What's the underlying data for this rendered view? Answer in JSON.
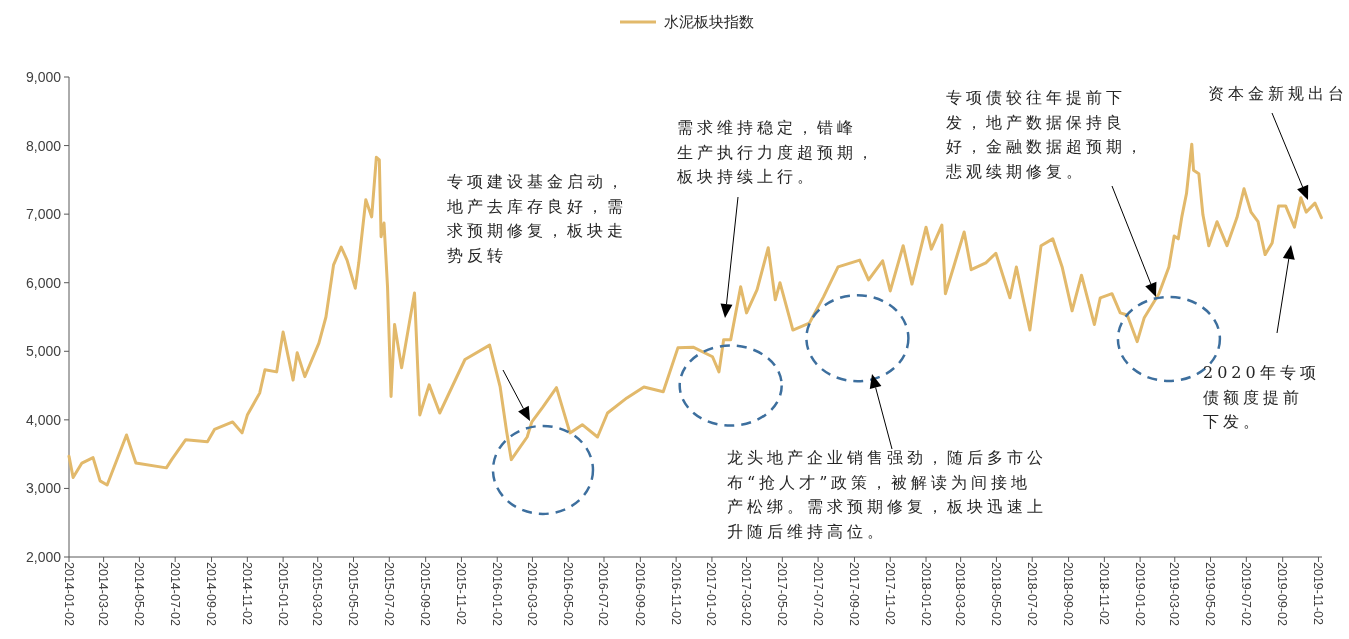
{
  "chart_data": {
    "type": "line",
    "legend": "top",
    "series": [
      {
        "name": "水泥板块指数",
        "color": "#e2b96b",
        "x": [
          "2014-01-02",
          "2014-01-09",
          "2014-01-24",
          "2014-02-12",
          "2014-02-24",
          "2014-03-08",
          "2014-04-10",
          "2014-04-26",
          "2014-06-17",
          "2014-06-26",
          "2014-07-20",
          "2014-08-26",
          "2014-09-07",
          "2014-10-08",
          "2014-10-24",
          "2014-11-02",
          "2014-11-23",
          "2014-12-02",
          "2014-12-22",
          "2015-01-02",
          "2015-01-19",
          "2015-01-26",
          "2015-02-08",
          "2015-03-04",
          "2015-03-16",
          "2015-03-29",
          "2015-04-11",
          "2015-04-21",
          "2015-05-05",
          "2015-05-11",
          "2015-05-23",
          "2015-06-02",
          "2015-06-10",
          "2015-06-15",
          "2015-06-18",
          "2015-06-23",
          "2015-06-29",
          "2015-07-05",
          "2015-07-11",
          "2015-07-23",
          "2015-08-14",
          "2015-08-23",
          "2015-09-08",
          "2015-09-26",
          "2015-11-08",
          "2015-12-20",
          "2016-01-07",
          "2016-01-18",
          "2016-01-26",
          "2016-02-22",
          "2016-03-01",
          "2016-03-20",
          "2016-04-12",
          "2016-05-05",
          "2016-05-26",
          "2016-06-21",
          "2016-07-08",
          "2016-08-10",
          "2016-09-08",
          "2016-10-11",
          "2016-11-05",
          "2016-12-01",
          "2017-01-03",
          "2017-01-14",
          "2017-01-22",
          "2017-02-03",
          "2017-02-20",
          "2017-03-02",
          "2017-03-20",
          "2017-04-08",
          "2017-04-20",
          "2017-04-28",
          "2017-05-20",
          "2017-06-17",
          "2017-07-11",
          "2017-08-05",
          "2017-09-11",
          "2017-09-26",
          "2017-10-20",
          "2017-11-02",
          "2017-11-24",
          "2017-12-09",
          "2018-01-02",
          "2018-01-11",
          "2018-01-29",
          "2018-02-04",
          "2018-02-18",
          "2018-03-08",
          "2018-03-20",
          "2018-04-14",
          "2018-05-01",
          "2018-05-25",
          "2018-06-05",
          "2018-06-17",
          "2018-06-28",
          "2018-07-17",
          "2018-08-06",
          "2018-08-22",
          "2018-09-08",
          "2018-09-24",
          "2018-10-16",
          "2018-10-26",
          "2018-11-15",
          "2018-11-29",
          "2018-12-11",
          "2018-12-28",
          "2019-01-09",
          "2019-02-03",
          "2019-02-20",
          "2019-03-01",
          "2019-03-08",
          "2019-03-14",
          "2019-03-22",
          "2019-03-31",
          "2019-04-03",
          "2019-04-12",
          "2019-04-19",
          "2019-04-29",
          "2019-05-13",
          "2019-05-30",
          "2019-06-16",
          "2019-06-28",
          "2019-07-10",
          "2019-07-22",
          "2019-08-03",
          "2019-08-15",
          "2019-08-26",
          "2019-09-07",
          "2019-09-22",
          "2019-10-03",
          "2019-10-12",
          "2019-10-27",
          "2019-11-07"
        ],
        "values": [
          3470,
          3160,
          3370,
          3450,
          3110,
          3050,
          3780,
          3370,
          3300,
          3420,
          3710,
          3680,
          3860,
          3970,
          3810,
          4070,
          4390,
          4730,
          4700,
          5280,
          4580,
          4980,
          4630,
          5120,
          5500,
          6260,
          6520,
          6330,
          5920,
          6290,
          7210,
          6960,
          7830,
          7790,
          6670,
          6870,
          5940,
          4340,
          5390,
          4760,
          5850,
          4070,
          4510,
          4100,
          4880,
          5090,
          4480,
          3830,
          3420,
          3750,
          3970,
          4190,
          4470,
          3810,
          3930,
          3750,
          4100,
          4320,
          4480,
          4410,
          5050,
          5060,
          4920,
          4700,
          5170,
          5170,
          5940,
          5560,
          5900,
          6510,
          5750,
          6000,
          5310,
          5410,
          5790,
          6230,
          6330,
          6040,
          6320,
          5880,
          6540,
          5980,
          6810,
          6490,
          6840,
          5840,
          6230,
          6740,
          6190,
          6290,
          6430,
          5780,
          6230,
          5740,
          5310,
          6540,
          6640,
          6230,
          5590,
          6110,
          5390,
          5780,
          5840,
          5560,
          5530,
          5140,
          5490,
          5840,
          6230,
          6680,
          6640,
          6960,
          7300,
          8020,
          7640,
          7590,
          6990,
          6540,
          6890,
          6540,
          6950,
          7370,
          7030,
          6890,
          6410,
          6580,
          7120,
          7120,
          6810,
          7240,
          7030,
          7160,
          6950
        ]
      }
    ],
    "xlim": [
      "2014-01-02",
      "2019-11-08"
    ],
    "xticks": [
      "2014-01-02",
      "2014-03-02",
      "2014-05-02",
      "2014-07-02",
      "2014-09-02",
      "2014-11-02",
      "2015-01-02",
      "2015-03-02",
      "2015-05-02",
      "2015-07-02",
      "2015-09-02",
      "2015-11-02",
      "2016-01-02",
      "2016-03-02",
      "2016-05-02",
      "2016-07-02",
      "2016-09-02",
      "2016-11-02",
      "2017-01-02",
      "2017-03-02",
      "2017-05-02",
      "2017-07-02",
      "2017-09-02",
      "2017-11-02",
      "2018-01-02",
      "2018-03-02",
      "2018-05-02",
      "2018-07-02",
      "2018-09-02",
      "2018-11-02",
      "2019-01-02",
      "2019-03-02",
      "2019-05-02",
      "2019-07-02",
      "2019-09-02",
      "2019-11-02"
    ],
    "ylim": [
      2000,
      9000
    ],
    "yticks": [
      {
        "value": 2000,
        "label": "2,000"
      },
      {
        "value": 3000,
        "label": "3,000"
      },
      {
        "value": 4000,
        "label": "4,000"
      },
      {
        "value": 5000,
        "label": "5,000"
      },
      {
        "value": 6000,
        "label": "6,000"
      },
      {
        "value": 7000,
        "label": "7,000"
      },
      {
        "value": 8000,
        "label": "8,000"
      },
      {
        "value": 9000,
        "label": "9,000"
      }
    ],
    "annotations": [
      "专项建设基金启动，地产去库存良好，需求预期修复，板块走势反转",
      "需求维持稳定，错峰生产执行力度超预期，板块持续上行。",
      "龙头地产企业销售强劲，随后多市公布“抢人才”政策，被解读为间接地产松绑。需求预期修复，板块迅速上升随后维持高位。",
      "专项债较往年提前下发，地产数据保持良好，金融数据超预期，悲观续期修复。",
      "资本金新规出台",
      "2020年专项债额度提前下发。"
    ]
  }
}
